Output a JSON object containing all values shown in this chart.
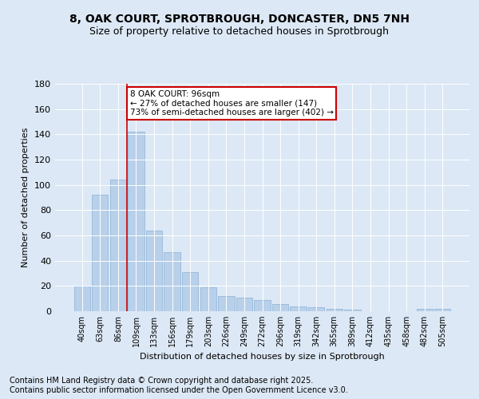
{
  "title1": "8, OAK COURT, SPROTBROUGH, DONCASTER, DN5 7NH",
  "title2": "Size of property relative to detached houses in Sprotbrough",
  "xlabel": "Distribution of detached houses by size in Sprotbrough",
  "ylabel": "Number of detached properties",
  "categories": [
    "40sqm",
    "63sqm",
    "86sqm",
    "109sqm",
    "133sqm",
    "156sqm",
    "179sqm",
    "203sqm",
    "226sqm",
    "249sqm",
    "272sqm",
    "296sqm",
    "319sqm",
    "342sqm",
    "365sqm",
    "389sqm",
    "412sqm",
    "435sqm",
    "458sqm",
    "482sqm",
    "505sqm"
  ],
  "values": [
    20,
    92,
    104,
    142,
    64,
    47,
    31,
    19,
    12,
    11,
    9,
    6,
    4,
    3,
    2,
    1,
    0,
    0,
    0,
    2,
    2
  ],
  "bar_color": "#b8d0ea",
  "bar_edge_color": "#8ab0d4",
  "vline_x": 2.5,
  "vline_color": "#cc0000",
  "annotation_text": "8 OAK COURT: 96sqm\n← 27% of detached houses are smaller (147)\n73% of semi-detached houses are larger (402) →",
  "annotation_box_color": "#ffffff",
  "annotation_box_edge_color": "#cc0000",
  "ylim": [
    0,
    180
  ],
  "yticks": [
    0,
    20,
    40,
    60,
    80,
    100,
    120,
    140,
    160,
    180
  ],
  "bg_color": "#dce8f5",
  "plot_bg_color": "#dce8f5",
  "footer1": "Contains HM Land Registry data © Crown copyright and database right 2025.",
  "footer2": "Contains public sector information licensed under the Open Government Licence v3.0.",
  "title_fontsize": 10,
  "subtitle_fontsize": 9,
  "label_fontsize": 8,
  "tick_fontsize": 7,
  "footer_fontsize": 7,
  "ann_fontsize": 7.5
}
